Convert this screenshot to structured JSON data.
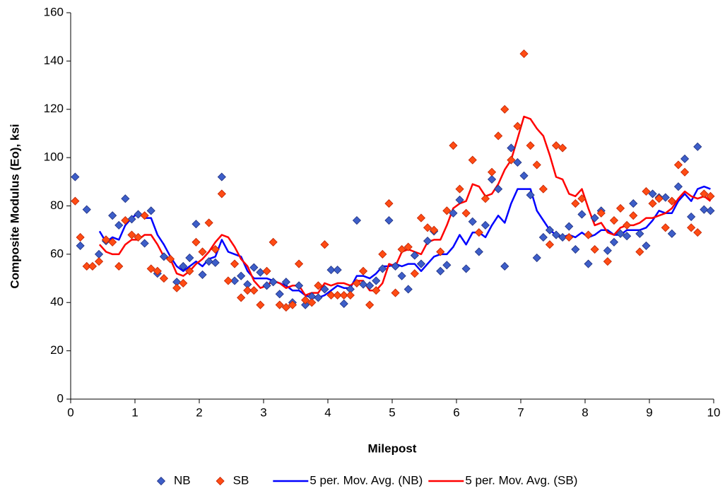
{
  "chart_data": {
    "type": "scatter",
    "x_label": "Milepost",
    "y_label": "Composite Modulus (Eo), ksi",
    "xlim": [
      0,
      10
    ],
    "xticks": [
      0,
      1,
      2,
      3,
      4,
      5,
      6,
      7,
      8,
      9,
      10
    ],
    "ylim": [
      0,
      160
    ],
    "yticks": [
      0,
      20,
      40,
      60,
      80,
      100,
      120,
      140,
      160
    ],
    "grid": false,
    "legend": "bottom",
    "series": [
      {
        "name": "NB",
        "style": "markers",
        "color": "#3d5ec8",
        "x": [
          0.07,
          0.15,
          0.25,
          0.44,
          0.55,
          0.65,
          0.75,
          0.85,
          0.95,
          1.05,
          1.15,
          1.25,
          1.35,
          1.45,
          1.65,
          1.75,
          1.85,
          1.95,
          2.05,
          2.15,
          2.25,
          2.35,
          2.55,
          2.65,
          2.75,
          2.85,
          2.95,
          3.05,
          3.15,
          3.25,
          3.35,
          3.45,
          3.55,
          3.65,
          3.75,
          3.85,
          3.95,
          4.05,
          4.15,
          4.25,
          4.35,
          4.45,
          4.55,
          4.65,
          4.75,
          4.85,
          4.95,
          5.05,
          5.15,
          5.25,
          5.35,
          5.45,
          5.55,
          5.65,
          5.75,
          5.85,
          5.95,
          6.05,
          6.15,
          6.25,
          6.35,
          6.45,
          6.55,
          6.65,
          6.75,
          6.85,
          6.95,
          7.05,
          7.15,
          7.25,
          7.35,
          7.45,
          7.55,
          7.65,
          7.75,
          7.85,
          7.95,
          8.05,
          8.15,
          8.25,
          8.35,
          8.45,
          8.55,
          8.65,
          8.75,
          8.85,
          8.95,
          9.05,
          9.15,
          9.25,
          9.35,
          9.45,
          9.55,
          9.65,
          9.75,
          9.85,
          9.95
        ],
        "values": [
          92,
          63.5,
          78.5,
          60,
          65.5,
          76,
          72,
          83,
          74.5,
          76.5,
          64.5,
          78,
          52,
          59,
          48.5,
          55,
          58.5,
          72.5,
          51.5,
          57,
          56.5,
          92,
          49,
          51,
          47.5,
          54.5,
          52.5,
          47,
          48.5,
          43.5,
          48.5,
          40,
          47,
          39,
          42.5,
          42,
          45.5,
          53.5,
          53.5,
          39.5,
          45.5,
          74,
          47.5,
          47,
          49,
          54,
          74,
          55,
          51,
          45.5,
          59.5,
          56,
          65.5,
          69.5,
          53,
          55.5,
          77,
          82.5,
          54,
          73.5,
          61,
          72,
          91,
          87,
          55,
          104,
          98,
          92.5,
          84.5,
          58.5,
          67,
          70,
          68,
          67,
          71.5,
          62,
          76.5,
          56,
          75,
          78,
          61.5,
          65,
          68.5,
          67.5,
          81,
          68.5,
          63.5,
          85,
          83.5,
          83.5,
          68.5,
          88,
          99.5,
          75.5,
          104.5,
          78.5,
          78
        ]
      },
      {
        "name": "SB",
        "style": "markers",
        "color": "#ff4c14",
        "x": [
          0.07,
          0.15,
          0.25,
          0.34,
          0.44,
          0.55,
          0.65,
          0.75,
          0.85,
          0.95,
          1.05,
          1.15,
          1.25,
          1.35,
          1.45,
          1.55,
          1.65,
          1.75,
          1.85,
          1.95,
          2.05,
          2.15,
          2.25,
          2.35,
          2.45,
          2.55,
          2.65,
          2.75,
          2.85,
          2.95,
          3.05,
          3.15,
          3.25,
          3.35,
          3.45,
          3.55,
          3.65,
          3.75,
          3.85,
          3.95,
          4.05,
          4.15,
          4.25,
          4.35,
          4.45,
          4.55,
          4.65,
          4.75,
          4.85,
          4.95,
          5.05,
          5.15,
          5.25,
          5.35,
          5.45,
          5.55,
          5.65,
          5.75,
          5.85,
          5.95,
          6.05,
          6.15,
          6.25,
          6.35,
          6.45,
          6.55,
          6.65,
          6.75,
          6.85,
          6.95,
          7.05,
          7.15,
          7.25,
          7.35,
          7.45,
          7.55,
          7.65,
          7.75,
          7.85,
          7.95,
          8.05,
          8.15,
          8.25,
          8.35,
          8.45,
          8.55,
          8.65,
          8.75,
          8.85,
          8.95,
          9.05,
          9.15,
          9.25,
          9.35,
          9.45,
          9.55,
          9.65,
          9.75,
          9.85,
          9.95
        ],
        "values": [
          82,
          67,
          55,
          55,
          57,
          66,
          65,
          55,
          74,
          68,
          67,
          76,
          54,
          53,
          50,
          58,
          46,
          48,
          53,
          65,
          61,
          73,
          62,
          85,
          49,
          56,
          42,
          45,
          45,
          39,
          53,
          65,
          39,
          38,
          39,
          56,
          41,
          40,
          47,
          64,
          43,
          43,
          43,
          43,
          48,
          53,
          39,
          45,
          60,
          81,
          44,
          62,
          63,
          52,
          75,
          71,
          70,
          61,
          78,
          105,
          87,
          77,
          99,
          69,
          83,
          94,
          109,
          120,
          99,
          113,
          143,
          105,
          97,
          87,
          64,
          105,
          104,
          67,
          81,
          83,
          68,
          62,
          77,
          57,
          74,
          79,
          72,
          76,
          61,
          86,
          81,
          83,
          71,
          82,
          97,
          94,
          71,
          69,
          85,
          84
        ]
      },
      {
        "name": "5 per. Mov. Avg. (NB)",
        "style": "line",
        "color": "#0000ff",
        "x": [
          0.45,
          0.55,
          0.65,
          0.75,
          0.85,
          0.95,
          1.05,
          1.15,
          1.25,
          1.35,
          1.45,
          1.55,
          1.65,
          1.75,
          1.85,
          1.95,
          2.05,
          2.15,
          2.25,
          2.35,
          2.45,
          2.55,
          2.65,
          2.75,
          2.85,
          2.95,
          3.05,
          3.15,
          3.25,
          3.35,
          3.45,
          3.55,
          3.65,
          3.75,
          3.85,
          3.95,
          4.05,
          4.15,
          4.25,
          4.35,
          4.45,
          4.55,
          4.65,
          4.75,
          4.85,
          4.95,
          5.05,
          5.15,
          5.25,
          5.35,
          5.45,
          5.55,
          5.65,
          5.75,
          5.85,
          5.95,
          6.05,
          6.15,
          6.25,
          6.35,
          6.45,
          6.55,
          6.65,
          6.75,
          6.85,
          6.95,
          7.05,
          7.15,
          7.25,
          7.35,
          7.45,
          7.55,
          7.65,
          7.75,
          7.85,
          7.95,
          8.05,
          8.15,
          8.25,
          8.35,
          8.45,
          8.55,
          8.65,
          8.75,
          8.85,
          8.95,
          9.05,
          9.15,
          9.25,
          9.35,
          9.45,
          9.55,
          9.65,
          9.75,
          9.85,
          9.95
        ],
        "values": [
          69.5,
          65,
          67,
          66,
          72,
          75,
          77,
          75,
          75,
          68,
          64,
          59,
          55,
          53,
          55,
          57,
          55,
          58,
          59,
          66,
          61,
          60,
          59,
          53,
          50,
          50,
          50,
          49,
          48,
          47,
          45,
          45,
          43,
          42,
          42,
          43,
          45,
          47,
          46,
          46,
          51,
          51,
          50,
          52,
          55,
          55,
          56,
          55,
          56,
          56,
          53,
          56,
          59,
          60,
          60,
          63,
          68,
          64,
          69,
          69,
          67,
          72,
          76,
          73,
          81,
          87,
          87,
          87,
          78,
          74,
          70,
          68,
          67,
          68,
          67,
          69,
          67,
          68,
          70,
          70,
          68,
          68,
          70,
          70,
          70,
          71,
          74,
          78,
          77,
          77,
          82,
          85,
          82,
          87,
          88,
          87
        ]
      },
      {
        "name": "5 per. Mov. Avg. (SB)",
        "style": "line",
        "color": "#ff0000",
        "x": [
          0.45,
          0.55,
          0.65,
          0.75,
          0.85,
          0.95,
          1.05,
          1.15,
          1.25,
          1.35,
          1.45,
          1.55,
          1.65,
          1.75,
          1.85,
          1.95,
          2.05,
          2.15,
          2.25,
          2.35,
          2.45,
          2.55,
          2.65,
          2.75,
          2.85,
          2.95,
          3.05,
          3.15,
          3.25,
          3.35,
          3.45,
          3.55,
          3.65,
          3.75,
          3.85,
          3.95,
          4.05,
          4.15,
          4.25,
          4.35,
          4.45,
          4.55,
          4.65,
          4.75,
          4.85,
          4.95,
          5.05,
          5.15,
          5.25,
          5.35,
          5.45,
          5.55,
          5.65,
          5.75,
          5.85,
          5.95,
          6.05,
          6.15,
          6.25,
          6.35,
          6.45,
          6.55,
          6.65,
          6.75,
          6.85,
          6.95,
          7.05,
          7.15,
          7.25,
          7.35,
          7.45,
          7.55,
          7.65,
          7.75,
          7.85,
          7.95,
          8.05,
          8.15,
          8.25,
          8.35,
          8.45,
          8.55,
          8.65,
          8.75,
          8.85,
          8.95,
          9.05,
          9.15,
          9.25,
          9.35,
          9.45,
          9.55,
          9.65,
          9.75,
          9.85,
          9.95
        ],
        "values": [
          64,
          61,
          60,
          60,
          64,
          66,
          66,
          68,
          68,
          64,
          59,
          58,
          52,
          51,
          53,
          56,
          58,
          61,
          65,
          68,
          67,
          63,
          58,
          55,
          49,
          46,
          47,
          49,
          48,
          46,
          47,
          47,
          43,
          44,
          44,
          48,
          47,
          48,
          48,
          47,
          49,
          49,
          45,
          45,
          48,
          56,
          55,
          61,
          62,
          61,
          60,
          65,
          66,
          66,
          72,
          79,
          81,
          82,
          89,
          88,
          84,
          85,
          89,
          95,
          99,
          108,
          117,
          116,
          112,
          109,
          101,
          92,
          91,
          85,
          84,
          87,
          79,
          72,
          73,
          69,
          68,
          71,
          72,
          72,
          73,
          75,
          75,
          76,
          77,
          79,
          83,
          86,
          84,
          83,
          84,
          82
        ]
      }
    ]
  }
}
